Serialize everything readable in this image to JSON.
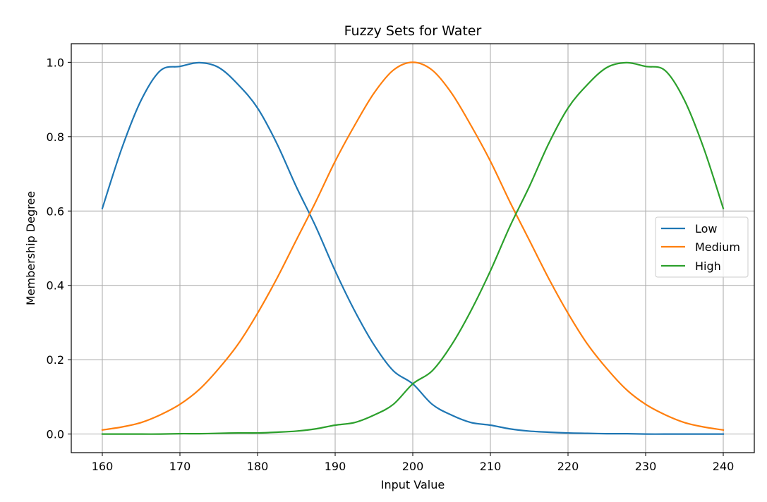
{
  "chart_data": {
    "type": "line",
    "title": "Fuzzy Sets for Water",
    "xlabel": "Input Value",
    "ylabel": "Membership Degree",
    "xlim": [
      156,
      244
    ],
    "ylim": [
      -0.05,
      1.05
    ],
    "xticks": [
      160,
      170,
      180,
      190,
      200,
      210,
      220,
      230,
      240
    ],
    "xtick_labels": [
      "160",
      "170",
      "180",
      "190",
      "200",
      "210",
      "220",
      "230",
      "240"
    ],
    "yticks": [
      0.0,
      0.2,
      0.4,
      0.6,
      0.8,
      1.0
    ],
    "ytick_labels": [
      "0.0",
      "0.2",
      "0.4",
      "0.6",
      "0.8",
      "1.0"
    ],
    "grid": true,
    "legend_position": "center-right",
    "x": [
      160,
      162.5,
      165,
      167.5,
      170,
      172.5,
      175,
      177.5,
      180,
      182.5,
      185,
      187.5,
      190,
      192.5,
      195,
      197.5,
      200,
      202.5,
      205,
      207.5,
      210,
      212.5,
      215,
      217.5,
      220,
      222.5,
      225,
      227.5,
      230,
      232.5,
      235,
      237.5,
      240
    ],
    "series": [
      {
        "name": "Low",
        "color": "#1f77b4",
        "values": [
          0.607,
          0.768,
          0.898,
          0.978,
          0.989,
          0.999,
          0.986,
          0.94,
          0.877,
          0.781,
          0.665,
          0.558,
          0.439,
          0.332,
          0.24,
          0.17,
          0.135,
          0.08,
          0.051,
          0.031,
          0.024,
          0.014,
          0.008,
          0.005,
          0.003,
          0.002,
          0.001,
          0.001,
          0.0,
          0.0,
          0.0,
          0.0,
          0.0
        ]
      },
      {
        "name": "Medium",
        "color": "#ff7f0e",
        "values": [
          0.011,
          0.019,
          0.031,
          0.052,
          0.08,
          0.12,
          0.176,
          0.242,
          0.325,
          0.419,
          0.522,
          0.625,
          0.734,
          0.83,
          0.917,
          0.979,
          1.0,
          0.979,
          0.917,
          0.83,
          0.734,
          0.625,
          0.522,
          0.419,
          0.325,
          0.242,
          0.176,
          0.12,
          0.08,
          0.052,
          0.031,
          0.019,
          0.011
        ]
      },
      {
        "name": "High",
        "color": "#2ca02c",
        "values": [
          0.0,
          0.0,
          0.0,
          0.0,
          0.001,
          0.001,
          0.002,
          0.003,
          0.003,
          0.005,
          0.008,
          0.014,
          0.024,
          0.031,
          0.051,
          0.08,
          0.135,
          0.17,
          0.24,
          0.332,
          0.439,
          0.558,
          0.665,
          0.781,
          0.877,
          0.94,
          0.986,
          0.999,
          0.989,
          0.978,
          0.898,
          0.768,
          0.607
        ]
      }
    ]
  }
}
